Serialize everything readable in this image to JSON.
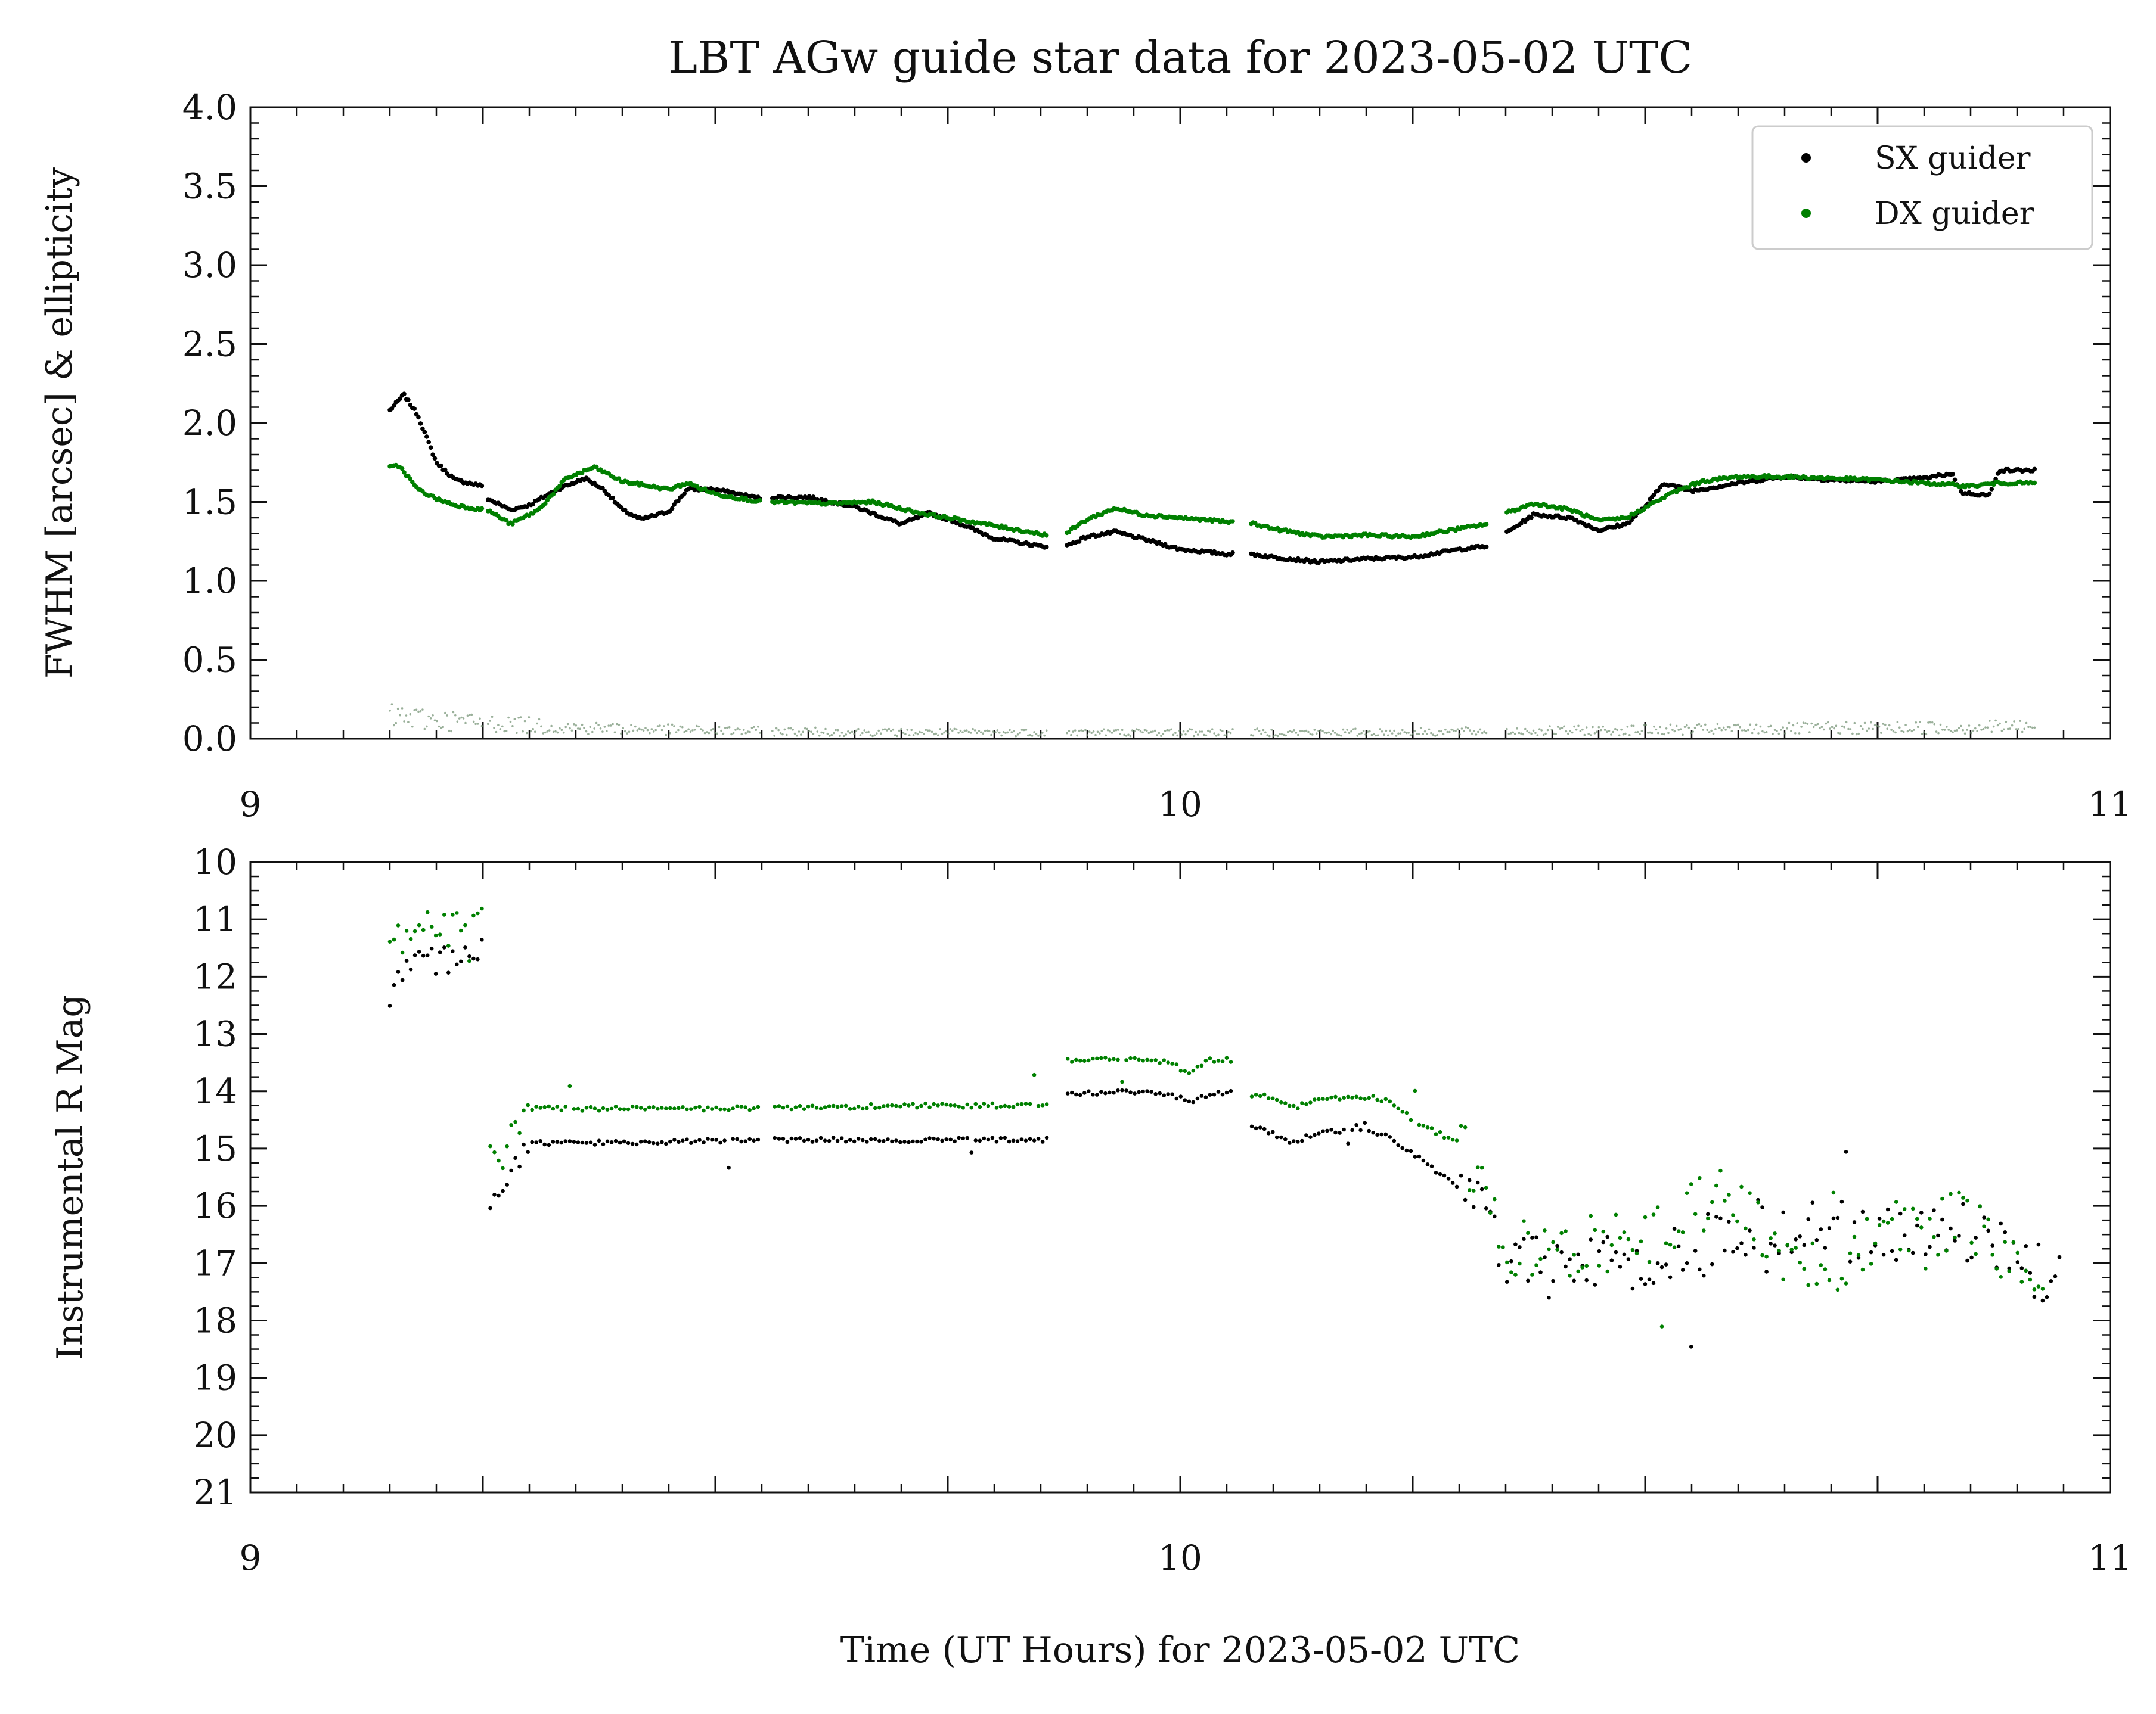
{
  "title": "LBT AGw guide star data for 2023-05-02 UTC",
  "xlabel": "Time (UT Hours) for 2023-05-02 UTC",
  "colors": {
    "sx": "#000000",
    "dx": "#008000",
    "ellipticity": "#6f8f6f",
    "axis": "#111111"
  },
  "legend": {
    "placement": "top-right",
    "entries": [
      "SX guider",
      "DX guider"
    ]
  },
  "chart_data": [
    {
      "type": "scatter",
      "ylabel": "FWHM [arcsec] & ellipticity",
      "xlim": [
        9,
        11
      ],
      "ylim": [
        0,
        4
      ],
      "x_ticks": [
        "9",
        "10",
        "11"
      ],
      "y_ticks": [
        "0.0",
        "0.5",
        "1.0",
        "1.5",
        "2.0",
        "2.5",
        "3.0",
        "3.5",
        "4.0"
      ],
      "legend": [
        "SX guider",
        "DX guider"
      ],
      "gaps": [
        [
          8.0,
          9.0
        ],
        [
          9.25,
          9.254
        ],
        [
          9.55,
          9.56
        ],
        [
          9.857,
          9.877
        ],
        [
          10.058,
          10.075
        ],
        [
          10.33,
          10.35
        ],
        [
          10.92,
          11.0
        ]
      ],
      "series": [
        {
          "name": "SX guider",
          "knots": [
            [
              9.15,
              2.08
            ],
            [
              9.165,
              2.18
            ],
            [
              9.18,
              2.05
            ],
            [
              9.2,
              1.75
            ],
            [
              9.22,
              1.64
            ],
            [
              9.25,
              1.6
            ],
            [
              9.255,
              1.52
            ],
            [
              9.28,
              1.45
            ],
            [
              9.3,
              1.48
            ],
            [
              9.33,
              1.58
            ],
            [
              9.36,
              1.65
            ],
            [
              9.38,
              1.58
            ],
            [
              9.4,
              1.45
            ],
            [
              9.42,
              1.39
            ],
            [
              9.45,
              1.44
            ],
            [
              9.47,
              1.58
            ],
            [
              9.5,
              1.58
            ],
            [
              9.55,
              1.52
            ],
            [
              9.56,
              1.53
            ],
            [
              9.6,
              1.53
            ],
            [
              9.65,
              1.47
            ],
            [
              9.7,
              1.36
            ],
            [
              9.73,
              1.43
            ],
            [
              9.76,
              1.37
            ],
            [
              9.8,
              1.27
            ],
            [
              9.85,
              1.22
            ],
            [
              9.877,
              1.22
            ],
            [
              9.9,
              1.28
            ],
            [
              9.93,
              1.31
            ],
            [
              9.97,
              1.25
            ],
            [
              10.0,
              1.2
            ],
            [
              10.05,
              1.17
            ],
            [
              10.075,
              1.17
            ],
            [
              10.1,
              1.15
            ],
            [
              10.15,
              1.12
            ],
            [
              10.2,
              1.14
            ],
            [
              10.25,
              1.15
            ],
            [
              10.3,
              1.2
            ],
            [
              10.33,
              1.22
            ],
            [
              10.35,
              1.3
            ],
            [
              10.38,
              1.42
            ],
            [
              10.42,
              1.4
            ],
            [
              10.45,
              1.32
            ],
            [
              10.48,
              1.36
            ],
            [
              10.5,
              1.47
            ],
            [
              10.52,
              1.62
            ],
            [
              10.55,
              1.57
            ],
            [
              10.6,
              1.62
            ],
            [
              10.65,
              1.66
            ],
            [
              10.7,
              1.64
            ],
            [
              10.75,
              1.63
            ],
            [
              10.8,
              1.65
            ],
            [
              10.83,
              1.68
            ],
            [
              10.84,
              1.56
            ],
            [
              10.87,
              1.54
            ],
            [
              10.88,
              1.7
            ],
            [
              10.95,
              1.7
            ]
          ]
        },
        {
          "name": "DX guider",
          "knots": [
            [
              9.15,
              1.72
            ],
            [
              9.16,
              1.73
            ],
            [
              9.18,
              1.58
            ],
            [
              9.2,
              1.52
            ],
            [
              9.22,
              1.48
            ],
            [
              9.25,
              1.45
            ],
            [
              9.255,
              1.45
            ],
            [
              9.28,
              1.36
            ],
            [
              9.31,
              1.45
            ],
            [
              9.34,
              1.65
            ],
            [
              9.37,
              1.72
            ],
            [
              9.4,
              1.63
            ],
            [
              9.45,
              1.58
            ],
            [
              9.47,
              1.62
            ],
            [
              9.5,
              1.55
            ],
            [
              9.55,
              1.5
            ],
            [
              9.56,
              1.5
            ],
            [
              9.62,
              1.49
            ],
            [
              9.67,
              1.5
            ],
            [
              9.72,
              1.43
            ],
            [
              9.78,
              1.37
            ],
            [
              9.857,
              1.29
            ],
            [
              9.877,
              1.3
            ],
            [
              9.9,
              1.39
            ],
            [
              9.93,
              1.46
            ],
            [
              9.96,
              1.42
            ],
            [
              10.0,
              1.4
            ],
            [
              10.058,
              1.37
            ],
            [
              10.075,
              1.37
            ],
            [
              10.1,
              1.33
            ],
            [
              10.15,
              1.28
            ],
            [
              10.2,
              1.29
            ],
            [
              10.25,
              1.28
            ],
            [
              10.3,
              1.33
            ],
            [
              10.33,
              1.36
            ],
            [
              10.35,
              1.43
            ],
            [
              10.38,
              1.49
            ],
            [
              10.42,
              1.45
            ],
            [
              10.45,
              1.38
            ],
            [
              10.48,
              1.4
            ],
            [
              10.53,
              1.56
            ],
            [
              10.56,
              1.63
            ],
            [
              10.6,
              1.66
            ],
            [
              10.65,
              1.66
            ],
            [
              10.75,
              1.64
            ],
            [
              10.8,
              1.62
            ],
            [
              10.85,
              1.6
            ],
            [
              10.88,
              1.62
            ],
            [
              10.95,
              1.62
            ]
          ]
        },
        {
          "name": "ellipticity",
          "knots": [
            [
              9.15,
              0.14
            ],
            [
              9.25,
              0.1
            ],
            [
              9.35,
              0.07
            ],
            [
              9.5,
              0.05
            ],
            [
              9.7,
              0.04
            ],
            [
              9.9,
              0.04
            ],
            [
              10.2,
              0.04
            ],
            [
              10.4,
              0.05
            ],
            [
              10.6,
              0.06
            ],
            [
              10.8,
              0.07
            ],
            [
              10.95,
              0.08
            ]
          ]
        }
      ]
    },
    {
      "type": "scatter",
      "ylabel": "Instrumental R Mag",
      "xlim": [
        9,
        11
      ],
      "ylim": [
        21,
        10
      ],
      "y_inverted": true,
      "x_ticks": [
        "9",
        "10",
        "11"
      ],
      "y_ticks": [
        "10",
        "11",
        "12",
        "13",
        "14",
        "15",
        "16",
        "17",
        "18",
        "19",
        "20",
        "21"
      ],
      "gaps": [
        [
          8.0,
          9.15
        ],
        [
          9.25,
          9.255
        ],
        [
          9.55,
          9.56
        ],
        [
          9.857,
          9.877
        ],
        [
          10.058,
          10.075
        ],
        [
          10.95,
          11.0
        ]
      ],
      "series": [
        {
          "name": "SX guider",
          "knots": [
            [
              9.15,
              12.3
            ],
            [
              9.17,
              11.8
            ],
            [
              9.2,
              11.75
            ],
            [
              9.23,
              11.6
            ],
            [
              9.25,
              11.6
            ],
            [
              9.255,
              15.9
            ],
            [
              9.27,
              15.7
            ],
            [
              9.29,
              15.1
            ],
            [
              9.3,
              14.9
            ],
            [
              9.4,
              14.9
            ],
            [
              9.55,
              14.85
            ],
            [
              9.56,
              14.85
            ],
            [
              9.7,
              14.85
            ],
            [
              9.857,
              14.85
            ],
            [
              9.877,
              14.05
            ],
            [
              9.95,
              14.0
            ],
            [
              9.99,
              14.05
            ],
            [
              10.01,
              14.2
            ],
            [
              10.03,
              14.05
            ],
            [
              10.058,
              14.0
            ],
            [
              10.075,
              14.6
            ],
            [
              10.1,
              14.75
            ],
            [
              10.12,
              14.9
            ],
            [
              10.15,
              14.7
            ],
            [
              10.2,
              14.7
            ],
            [
              10.22,
              14.75
            ],
            [
              10.26,
              15.2
            ],
            [
              10.3,
              15.7
            ],
            [
              10.33,
              16.2
            ],
            [
              10.35,
              17.0
            ],
            [
              10.4,
              17.1
            ],
            [
              10.45,
              17.1
            ],
            [
              10.5,
              17.1
            ],
            [
              10.55,
              16.8
            ],
            [
              10.6,
              16.4
            ],
            [
              10.65,
              16.3
            ],
            [
              10.7,
              16.5
            ],
            [
              10.75,
              16.4
            ],
            [
              10.8,
              16.6
            ],
            [
              10.85,
              16.4
            ],
            [
              10.9,
              16.9
            ],
            [
              10.95,
              17.4
            ]
          ]
        },
        {
          "name": "DX guider",
          "knots": [
            [
              9.15,
              11.15
            ],
            [
              9.2,
              11.05
            ],
            [
              9.25,
              10.95
            ],
            [
              9.255,
              15.0
            ],
            [
              9.27,
              15.3
            ],
            [
              9.29,
              14.4
            ],
            [
              9.3,
              14.3
            ],
            [
              9.4,
              14.3
            ],
            [
              9.55,
              14.3
            ],
            [
              9.56,
              14.3
            ],
            [
              9.7,
              14.25
            ],
            [
              9.857,
              14.25
            ],
            [
              9.877,
              13.45
            ],
            [
              9.95,
              13.45
            ],
            [
              9.99,
              13.5
            ],
            [
              10.01,
              13.7
            ],
            [
              10.03,
              13.45
            ],
            [
              10.058,
              13.45
            ],
            [
              10.075,
              14.05
            ],
            [
              10.1,
              14.1
            ],
            [
              10.12,
              14.3
            ],
            [
              10.15,
              14.15
            ],
            [
              10.2,
              14.1
            ],
            [
              10.22,
              14.15
            ],
            [
              10.26,
              14.6
            ],
            [
              10.3,
              14.9
            ],
            [
              10.33,
              15.8
            ],
            [
              10.35,
              16.7
            ],
            [
              10.4,
              16.8
            ],
            [
              10.45,
              16.7
            ],
            [
              10.5,
              16.5
            ],
            [
              10.55,
              16.1
            ],
            [
              10.58,
              15.8
            ],
            [
              10.62,
              16.4
            ],
            [
              10.66,
              17.0
            ],
            [
              10.7,
              17.3
            ],
            [
              10.76,
              16.3
            ],
            [
              10.8,
              16.7
            ],
            [
              10.84,
              16.1
            ],
            [
              10.88,
              16.8
            ],
            [
              10.93,
              17.5
            ]
          ]
        }
      ]
    }
  ]
}
